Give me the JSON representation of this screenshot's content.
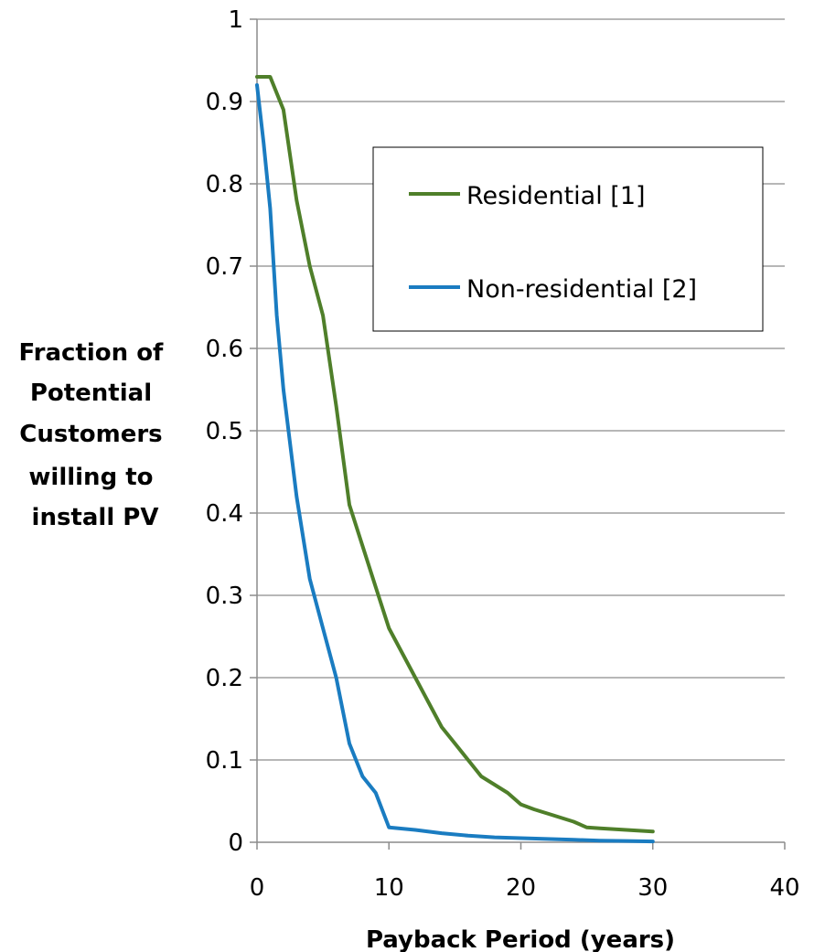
{
  "chart_data": {
    "type": "line",
    "title": "",
    "xlabel": "Payback Period (years)",
    "ylabel_lines": [
      "Fraction of",
      "Potential",
      "Customers",
      "willing to",
      "install PV"
    ],
    "xlim": [
      0,
      40
    ],
    "ylim": [
      0,
      1
    ],
    "x_ticks": [
      "0",
      "10",
      "20",
      "30",
      "40"
    ],
    "y_ticks": [
      "0",
      "0.1",
      "0.2",
      "0.3",
      "0.4",
      "0.5",
      "0.6",
      "0.7",
      "0.8",
      "0.9",
      "1"
    ],
    "grid": "horizontal",
    "legend_placement": "top-right",
    "series": [
      {
        "name": "Residential [1]",
        "color": "#4f7f2a",
        "x": [
          0,
          1,
          2,
          3,
          4,
          5,
          6,
          7,
          8,
          9,
          10,
          11,
          12,
          13,
          14,
          15,
          16,
          17,
          18,
          19,
          20,
          21,
          22,
          23,
          24,
          25,
          26,
          27,
          28,
          29,
          30
        ],
        "y": [
          0.93,
          0.93,
          0.89,
          0.78,
          0.7,
          0.64,
          0.53,
          0.41,
          0.36,
          0.31,
          0.26,
          0.23,
          0.2,
          0.17,
          0.14,
          0.12,
          0.1,
          0.08,
          0.07,
          0.06,
          0.046,
          0.04,
          0.035,
          0.03,
          0.025,
          0.018,
          0.017,
          0.016,
          0.015,
          0.014,
          0.013
        ]
      },
      {
        "name": "Non-residential [2]",
        "color": "#1a7cc1",
        "x": [
          0,
          0.5,
          1,
          1.5,
          2,
          3,
          4,
          5,
          6,
          7,
          8,
          9,
          10,
          12,
          14,
          16,
          18,
          20,
          22,
          24,
          26,
          28,
          30
        ],
        "y": [
          0.92,
          0.85,
          0.77,
          0.64,
          0.55,
          0.42,
          0.32,
          0.26,
          0.2,
          0.12,
          0.08,
          0.06,
          0.018,
          0.015,
          0.011,
          0.008,
          0.006,
          0.005,
          0.004,
          0.003,
          0.002,
          0.0015,
          0.001
        ]
      }
    ]
  }
}
